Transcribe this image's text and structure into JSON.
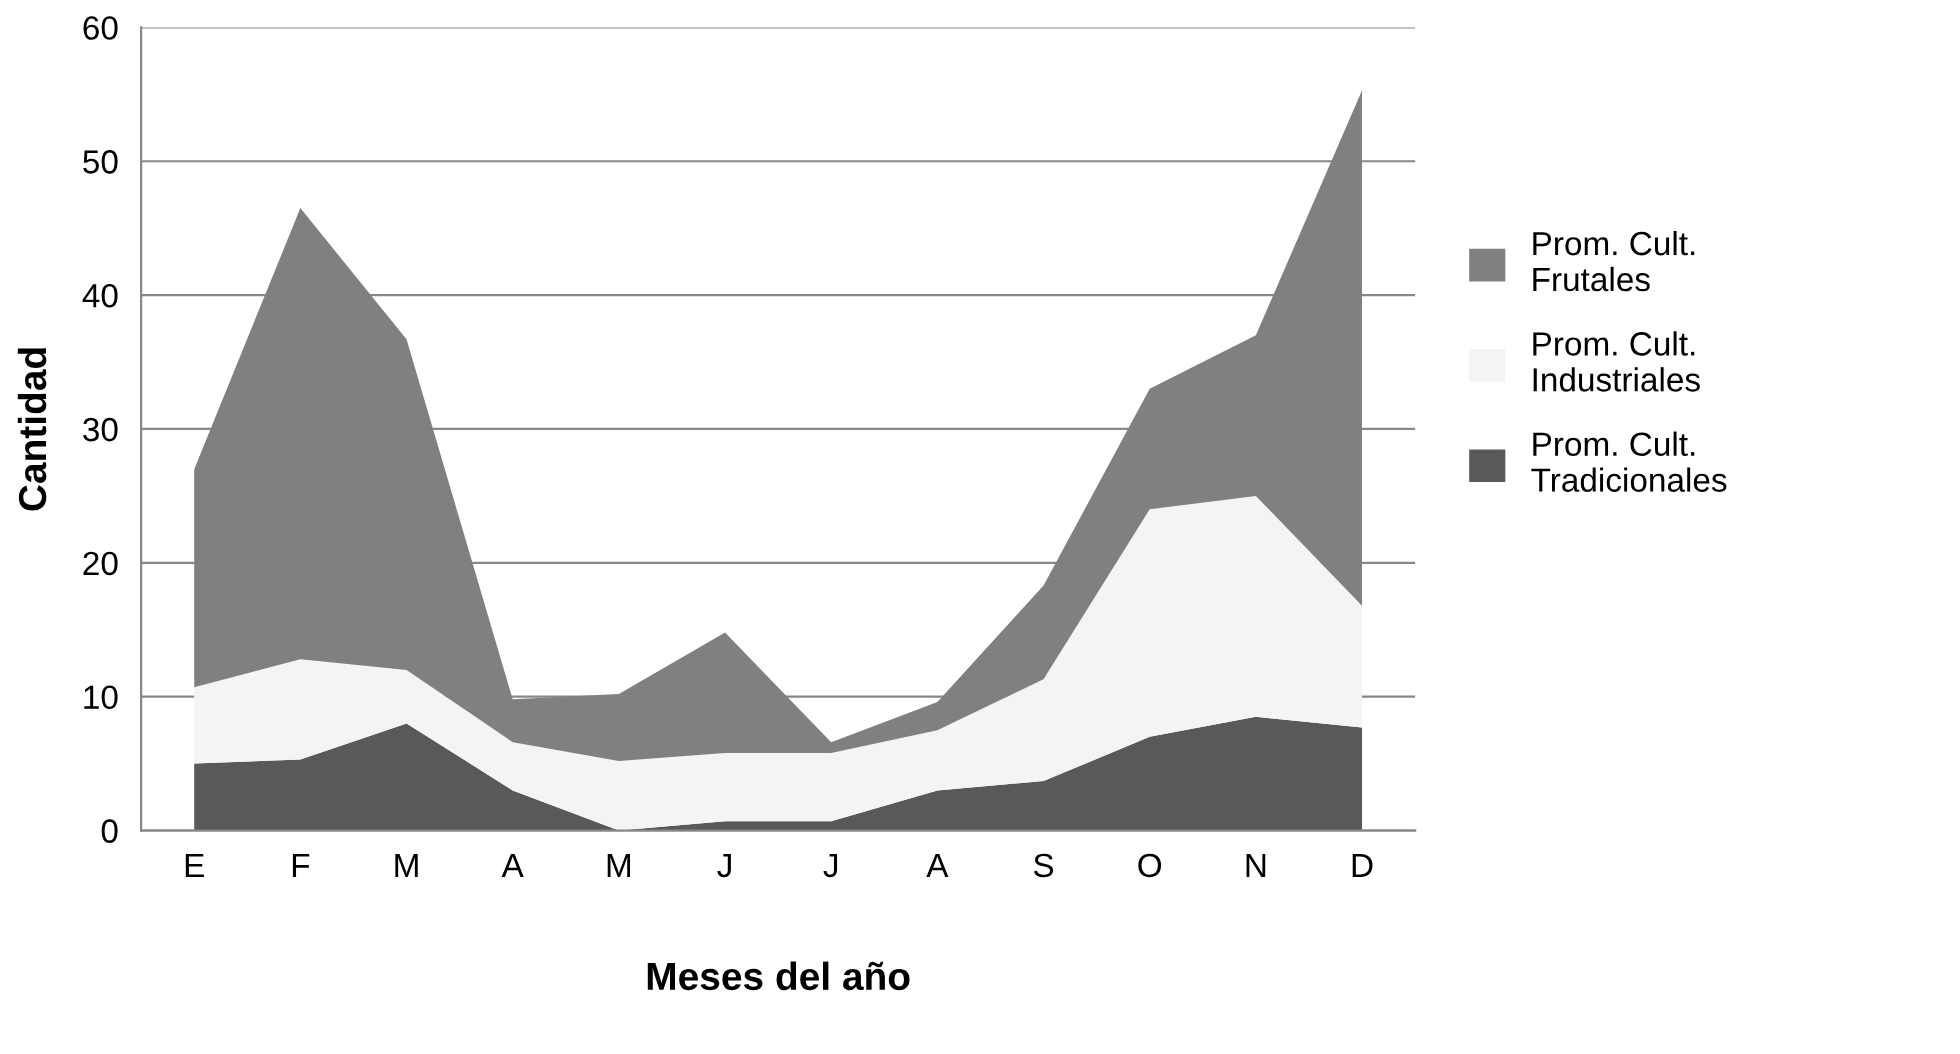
{
  "chart_data": {
    "type": "area",
    "stacked": true,
    "xlabel": "Meses del año",
    "ylabel": "Cantidad",
    "categories": [
      "E",
      "F",
      "M",
      "A",
      "M",
      "J",
      "J",
      "A",
      "S",
      "O",
      "N",
      "D"
    ],
    "series": [
      {
        "name": "Prom. Cult. Tradicionales",
        "color": "#595959",
        "values": [
          5,
          5.3,
          8,
          3,
          0,
          0.7,
          0.7,
          3,
          3.7,
          7,
          8.5,
          7.7
        ]
      },
      {
        "name": "Prom. Cult. Industriales",
        "color": "#f4f4f4",
        "values": [
          5.7,
          7.5,
          4,
          3.6,
          5.2,
          5.1,
          5.1,
          4.5,
          7.6,
          17,
          16.5,
          9.1
        ]
      },
      {
        "name": "Prom. Cult. Frutales",
        "color": "#808080",
        "values": [
          16.3,
          33.7,
          24.7,
          3.2,
          5,
          9,
          0.8,
          2.1,
          7,
          9,
          12,
          38.5
        ]
      }
    ],
    "ylim": [
      0,
      60
    ],
    "yticks": [
      0,
      10,
      20,
      30,
      40,
      50,
      60
    ],
    "grid": "y",
    "legend": "right"
  }
}
